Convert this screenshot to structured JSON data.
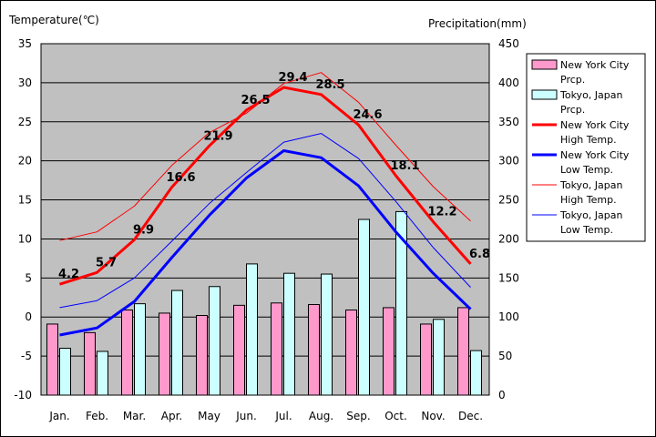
{
  "chart_data": {
    "type": "bar+line",
    "categories": [
      "Jan.",
      "Feb.",
      "Mar.",
      "Apr.",
      "May",
      "Jun.",
      "Jul.",
      "Aug.",
      "Sep.",
      "Oct.",
      "Nov.",
      "Dec."
    ],
    "y_left": {
      "label": "Temperature(℃)",
      "min": -10,
      "max": 35,
      "step": 5
    },
    "y_right": {
      "label": "Precipitation(mm)",
      "min": 0,
      "max": 450,
      "step": 50
    },
    "grid": true,
    "legend_position": "right",
    "bars": [
      {
        "name": [
          "New York City",
          "Prcp."
        ],
        "color": "#ff99cc",
        "values": [
          91,
          80,
          109,
          105,
          102,
          115,
          118,
          116,
          109,
          112,
          91,
          112
        ]
      },
      {
        "name": [
          "Tokyo, Japan",
          "Prcp."
        ],
        "color": "#ccffff",
        "values": [
          60,
          56,
          117,
          134,
          139,
          168,
          156,
          155,
          225,
          235,
          97,
          57
        ]
      }
    ],
    "lines": [
      {
        "name": [
          "New York City",
          "High Temp."
        ],
        "color": "#ff0000",
        "width": 3,
        "values": [
          4.2,
          5.7,
          9.9,
          16.6,
          21.9,
          26.5,
          29.4,
          28.5,
          24.6,
          18.1,
          12.2,
          6.8
        ],
        "show_labels": true
      },
      {
        "name": [
          "New York City",
          "Low Temp."
        ],
        "color": "#0000ff",
        "width": 3,
        "values": [
          -2.3,
          -1.4,
          2.0,
          7.6,
          13.0,
          17.8,
          21.3,
          20.4,
          16.8,
          10.9,
          5.6,
          1.0
        ],
        "show_labels": false
      },
      {
        "name": [
          "Tokyo, Japan",
          "High Temp."
        ],
        "color": "#ff0000",
        "width": 1,
        "values": [
          9.8,
          10.9,
          14.2,
          19.4,
          23.6,
          26.1,
          29.9,
          31.3,
          27.5,
          22.0,
          16.7,
          12.3
        ],
        "show_labels": false
      },
      {
        "name": [
          "Tokyo, Japan",
          "Low Temp."
        ],
        "color": "#0000ff",
        "width": 1,
        "values": [
          1.2,
          2.1,
          5.0,
          9.7,
          14.5,
          18.5,
          22.4,
          23.5,
          20.3,
          14.8,
          8.9,
          3.8
        ],
        "show_labels": false
      }
    ]
  }
}
